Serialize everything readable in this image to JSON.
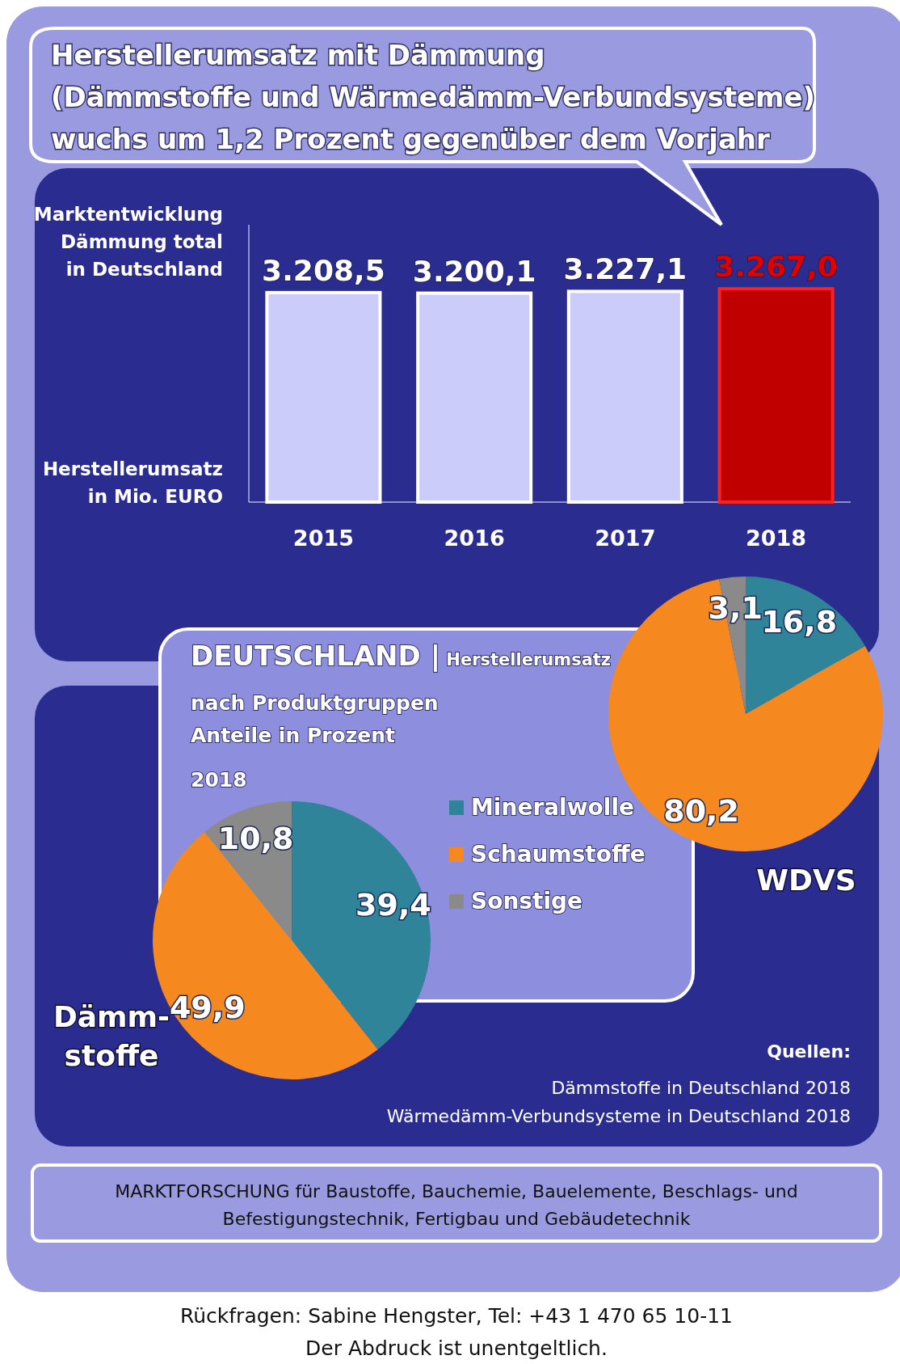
{
  "chart_data": [
    {
      "type": "bar",
      "title": "Herstellerumsatz mit Dämmung\n(Dämmstoffe und Wärmedämm-Verbundsysteme)\nwuchs um 1,2 Prozent gegenüber dem Vorjahr",
      "subtitle": "Marktentwicklung\nDämmung total\nin Deutschland",
      "ylabel": "Herstellerumsatz\nin Mio. EURO",
      "categories": [
        "2015",
        "2016",
        "2017",
        "2018"
      ],
      "values": [
        3208.5,
        3200.1,
        3227.1,
        3267.0
      ],
      "value_labels": [
        "3.208,5",
        "3.200,1",
        "3.227,1",
        "3.267,0"
      ],
      "colors": [
        "#ccccfa",
        "#ccccfa",
        "#ccccfa",
        "#c00000"
      ],
      "tick_labels": "x"
    },
    {
      "type": "pie",
      "title": "Dämm-stoffe",
      "categories": [
        "Mineralwolle",
        "Schaumstoffe",
        "Sonstige"
      ],
      "values": [
        39.4,
        49.9,
        10.8
      ],
      "value_labels": [
        "39,4",
        "49,9",
        "10,8"
      ],
      "colors": [
        "#2f8499",
        "#f5891f",
        "#8a8a8a"
      ],
      "legend": "right",
      "annotations": [
        "DEUTSCHLAND | Herstellerumsatz",
        "nach Produktgruppen",
        "Anteile in Prozent",
        "2018"
      ]
    },
    {
      "type": "pie",
      "title": "WDVS",
      "categories": [
        null,
        null,
        null
      ],
      "values": [
        16.8,
        80.2,
        3.1
      ],
      "value_labels": [
        "16,8",
        "80,2",
        "3,1"
      ],
      "colors": [
        "#2f8499",
        "#f5891f",
        "#8a8a8a"
      ],
      "annotations": [
        "Quellen:",
        "Dämmstoffe in Deutschland 2018",
        "Wärmedämm-Verbundsysteme in Deutschland 2018",
        "MARKTFORSCHUNG für Baustoffe, Bauchemie, Bauelemente, Beschlags- und",
        "Befestigungstechnik, Fertigbau und Gebäudetechnik",
        "Rückfragen: Sabine Hengster, Tel: +43 1 470 65 10-11",
        "Der Abdruck ist unentgeltlich."
      ]
    }
  ]
}
